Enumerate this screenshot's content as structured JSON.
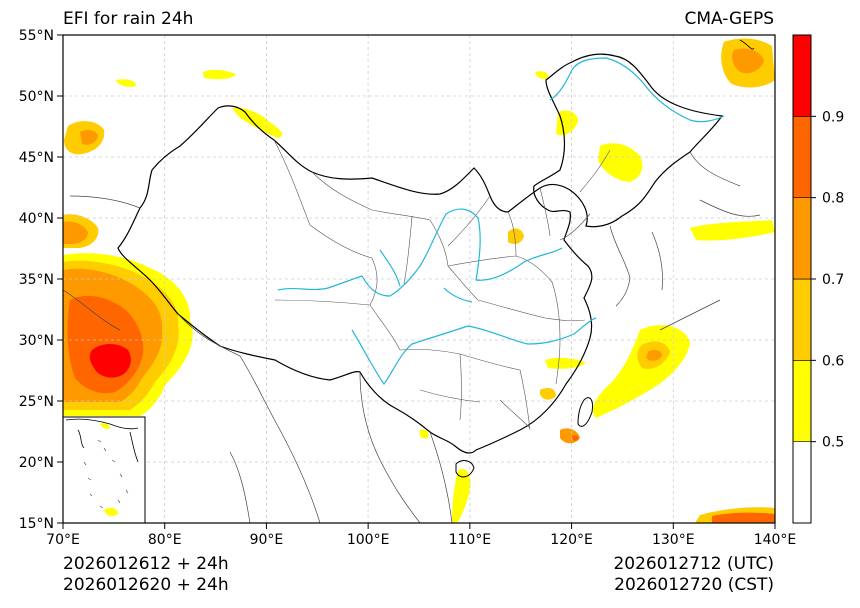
{
  "title_left": "EFI for rain 24h",
  "title_right": "CMA-GEPS",
  "footer": {
    "left_line1": "2026012612 + 24h",
    "left_line2": "2026012620 + 24h",
    "right_line1": "2026012712 (UTC)",
    "right_line2": "2026012720 (CST)"
  },
  "axes": {
    "lon_ticks": [
      "70°E",
      "80°E",
      "90°E",
      "100°E",
      "110°E",
      "120°E",
      "130°E",
      "140°E"
    ],
    "lat_ticks": [
      "15°N",
      "20°N",
      "25°N",
      "30°N",
      "35°N",
      "40°N",
      "45°N",
      "50°N",
      "55°N"
    ]
  },
  "colorbar": {
    "bins": [
      {
        "color": "#ffffff"
      },
      {
        "color": "#ffff00"
      },
      {
        "color": "#ffcc00"
      },
      {
        "color": "#ff9900"
      },
      {
        "color": "#ff6600"
      },
      {
        "color": "#ff0000"
      }
    ],
    "tick_labels": [
      "0.5",
      "0.6",
      "0.7",
      "0.8",
      "0.9"
    ]
  },
  "colors": {
    "river": "#22b8d8",
    "border": "#000000",
    "province": "#333333",
    "grid": "#cccccc"
  }
}
